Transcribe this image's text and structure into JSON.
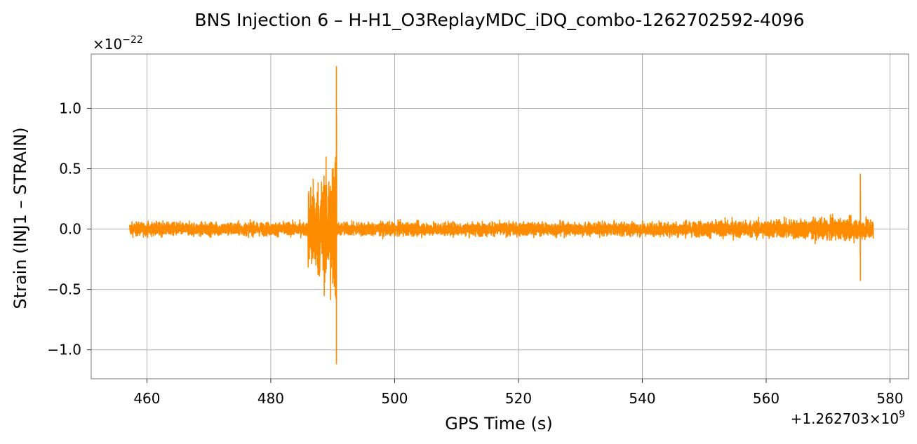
{
  "chart_data": {
    "type": "line",
    "title": "BNS Injection 6 – H-H1_O3ReplayMDC_iDQ_combo-1262702592-4096",
    "xlabel": "GPS Time (s)",
    "ylabel": "Strain (INJ1 – STRAIN)",
    "x_offset_label": "+1.262703",
    "x_offset_suffix": "×10",
    "x_offset_exp": "9",
    "y_scale_label": "×10",
    "y_scale_exp": "−22",
    "xlim": [
      451,
      583
    ],
    "ylim": [
      -1.24,
      1.45
    ],
    "xticks": [
      460,
      480,
      500,
      520,
      540,
      560,
      580
    ],
    "xtick_labels": [
      "460",
      "480",
      "500",
      "520",
      "540",
      "560",
      "580"
    ],
    "yticks": [
      -1.0,
      -0.5,
      0.0,
      0.5,
      1.0
    ],
    "ytick_labels": [
      "−1.0",
      "−0.5",
      "0.0",
      "0.5",
      "1.0"
    ],
    "grid": true,
    "line_color": "#ff8c00",
    "series": [
      {
        "x_range": [
          457.2,
          577.3
        ],
        "baseline_amplitude": 0.09,
        "features": [
          {
            "x": 486.0,
            "kind": "burst-start",
            "amplitude": 0.42
          },
          {
            "x": 490.6,
            "kind": "peak",
            "ymax": 1.35,
            "ymin": -1.12
          },
          {
            "x": 491.0,
            "kind": "burst-end",
            "amplitude": 0.12
          },
          {
            "x": 575.2,
            "kind": "glitch",
            "ymax": 0.46,
            "ymin": -0.43
          }
        ]
      }
    ]
  }
}
